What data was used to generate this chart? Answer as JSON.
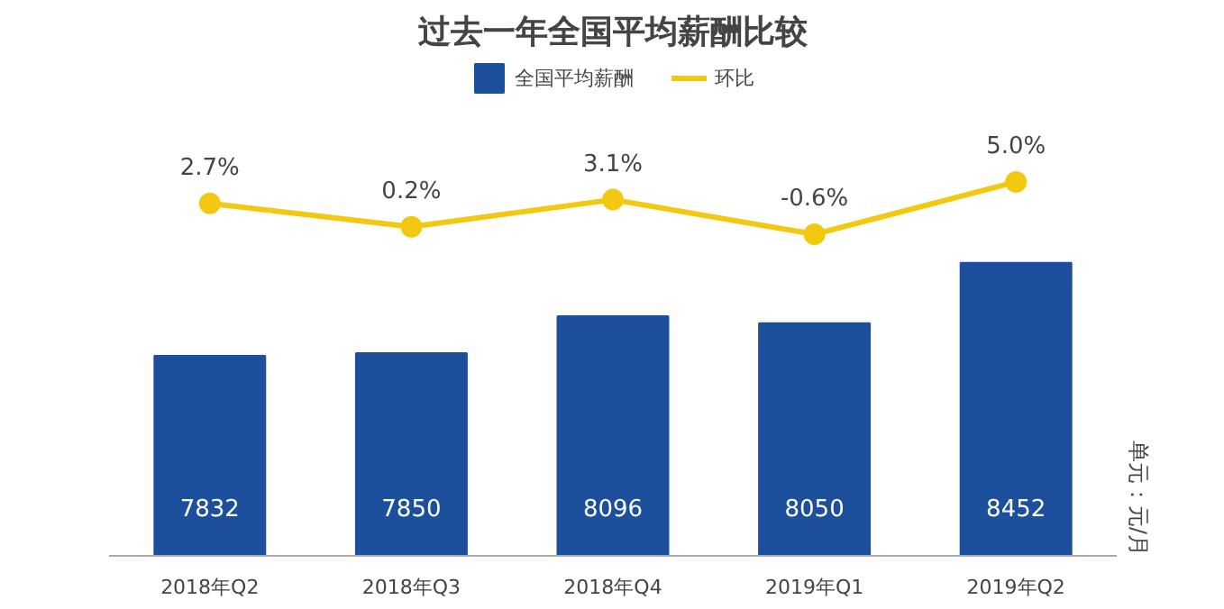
{
  "chart_data": {
    "type": "bar",
    "title": "过去一年全国平均薪酬比较",
    "categories": [
      "2018年Q2",
      "2018年Q3",
      "2018年Q4",
      "2019年Q1",
      "2019年Q2"
    ],
    "series": [
      {
        "name": "全国平均薪酬",
        "color": "#1c4f9c",
        "values": [
          7832,
          7850,
          8096,
          8050,
          8452
        ],
        "value_labels": [
          "7832",
          "7850",
          "8096",
          "8050",
          "8452"
        ]
      },
      {
        "name": "环比",
        "type": "line",
        "axis": "y2",
        "color": "#f2c811",
        "marker": "circle",
        "values": [
          2.7,
          0.2,
          3.1,
          -0.6,
          5.0
        ],
        "value_labels": [
          "2.7%",
          "0.2%",
          "3.1%",
          "-0.6%",
          "5.0%"
        ]
      }
    ],
    "ylim": [
      6500,
      9800
    ],
    "y2lim": [
      -35,
      18
    ],
    "tick_labels": "x",
    "legend": "top",
    "grid": false,
    "annotations": [
      "单元：元/月"
    ]
  }
}
